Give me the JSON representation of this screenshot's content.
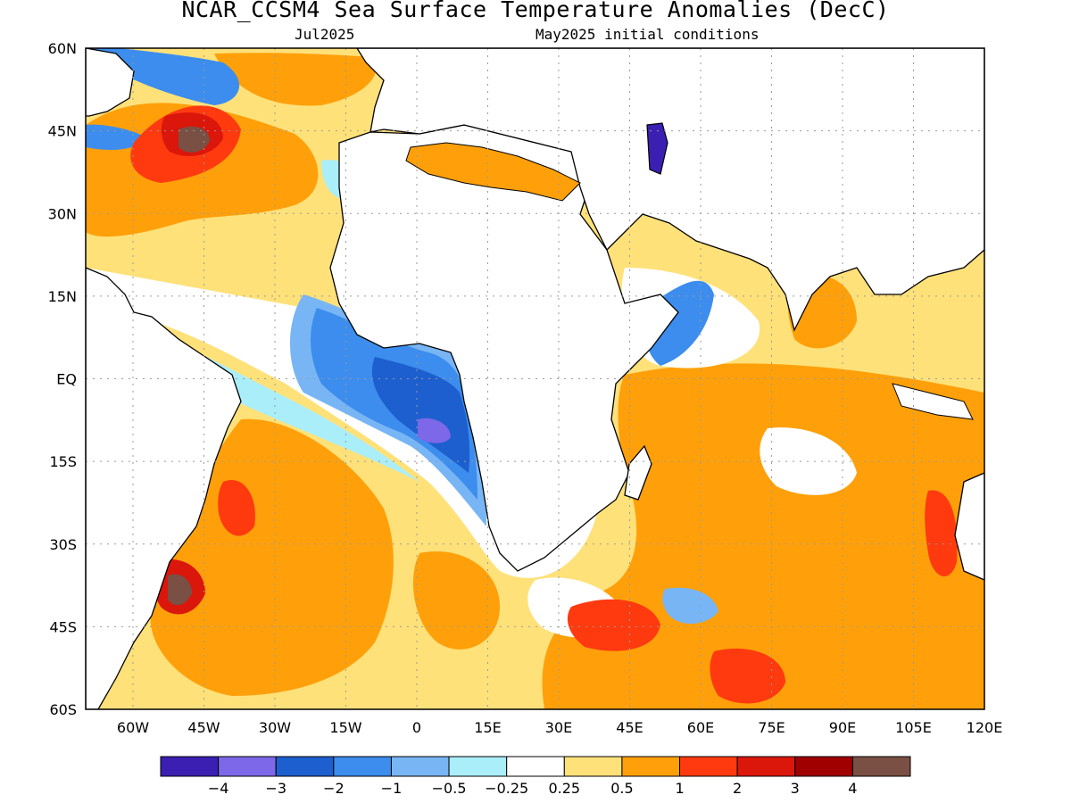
{
  "title": "NCAR_CCSM4 Sea Surface Temperature Anomalies (DecC)",
  "subtitle_left": "Jul2025",
  "subtitle_right": "May2025 initial conditions",
  "lat_labels": [
    "60N",
    "45N",
    "30N",
    "15N",
    "EQ",
    "15S",
    "30S",
    "45S",
    "60S"
  ],
  "lat_values": [
    60,
    45,
    30,
    15,
    0,
    -15,
    -30,
    -45,
    -60
  ],
  "lon_labels": [
    "60W",
    "45W",
    "30W",
    "15W",
    "0",
    "15E",
    "30E",
    "45E",
    "60E",
    "75E",
    "90E",
    "105E",
    "120E"
  ],
  "lon_values": [
    -60,
    -45,
    -30,
    -15,
    0,
    15,
    30,
    45,
    60,
    75,
    90,
    105,
    120
  ],
  "map_extent": {
    "lon_min": -70,
    "lon_max": 120,
    "lat_min": -60,
    "lat_max": 60
  },
  "colorbar": {
    "colors": [
      "#3b1fb3",
      "#7c68e8",
      "#1d5fcf",
      "#3c8ded",
      "#78b5f5",
      "#aaeefa",
      "#ffffff",
      "#ffe17a",
      "#ffa00a",
      "#ff3a0f",
      "#db160a",
      "#a00000",
      "#7a4f44"
    ],
    "tick_labels": [
      "−4",
      "−3",
      "−2",
      "−1",
      "−0.5",
      "−0.25",
      "0.25",
      "0.5",
      "1",
      "2",
      "3",
      "4"
    ]
  },
  "colors": {
    "land": "#ffffff",
    "grid": "#9a9a9a",
    "coast": "#000000"
  }
}
